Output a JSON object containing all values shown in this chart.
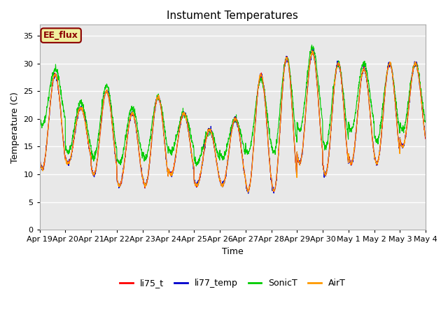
{
  "title": "Instument Temperatures",
  "xlabel": "Time",
  "ylabel": "Temperature (C)",
  "ylim": [
    0,
    37
  ],
  "yticks": [
    0,
    5,
    10,
    15,
    20,
    25,
    30,
    35
  ],
  "plot_bg_color": "#e8e8e8",
  "annotation_text": "EE_flux",
  "annotation_bg": "#f0f0a0",
  "annotation_border": "#8b0000",
  "annotation_text_color": "#8b0000",
  "legend_labels": [
    "li75_t",
    "li77_temp",
    "SonicT",
    "AirT"
  ],
  "line_colors": [
    "#ff0000",
    "#0000cc",
    "#00cc00",
    "#ff9900"
  ],
  "xticklabels": [
    "Apr 19",
    "Apr 20",
    "Apr 21",
    "Apr 22",
    "Apr 23",
    "Apr 24",
    "Apr 25",
    "Apr 26",
    "Apr 27",
    "Apr 28",
    "Apr 29",
    "Apr 30",
    "May 1",
    "May 2",
    "May 3",
    "May 4"
  ],
  "num_days": 15,
  "pts_per_day": 144,
  "figsize": [
    6.4,
    4.8
  ],
  "dpi": 100
}
